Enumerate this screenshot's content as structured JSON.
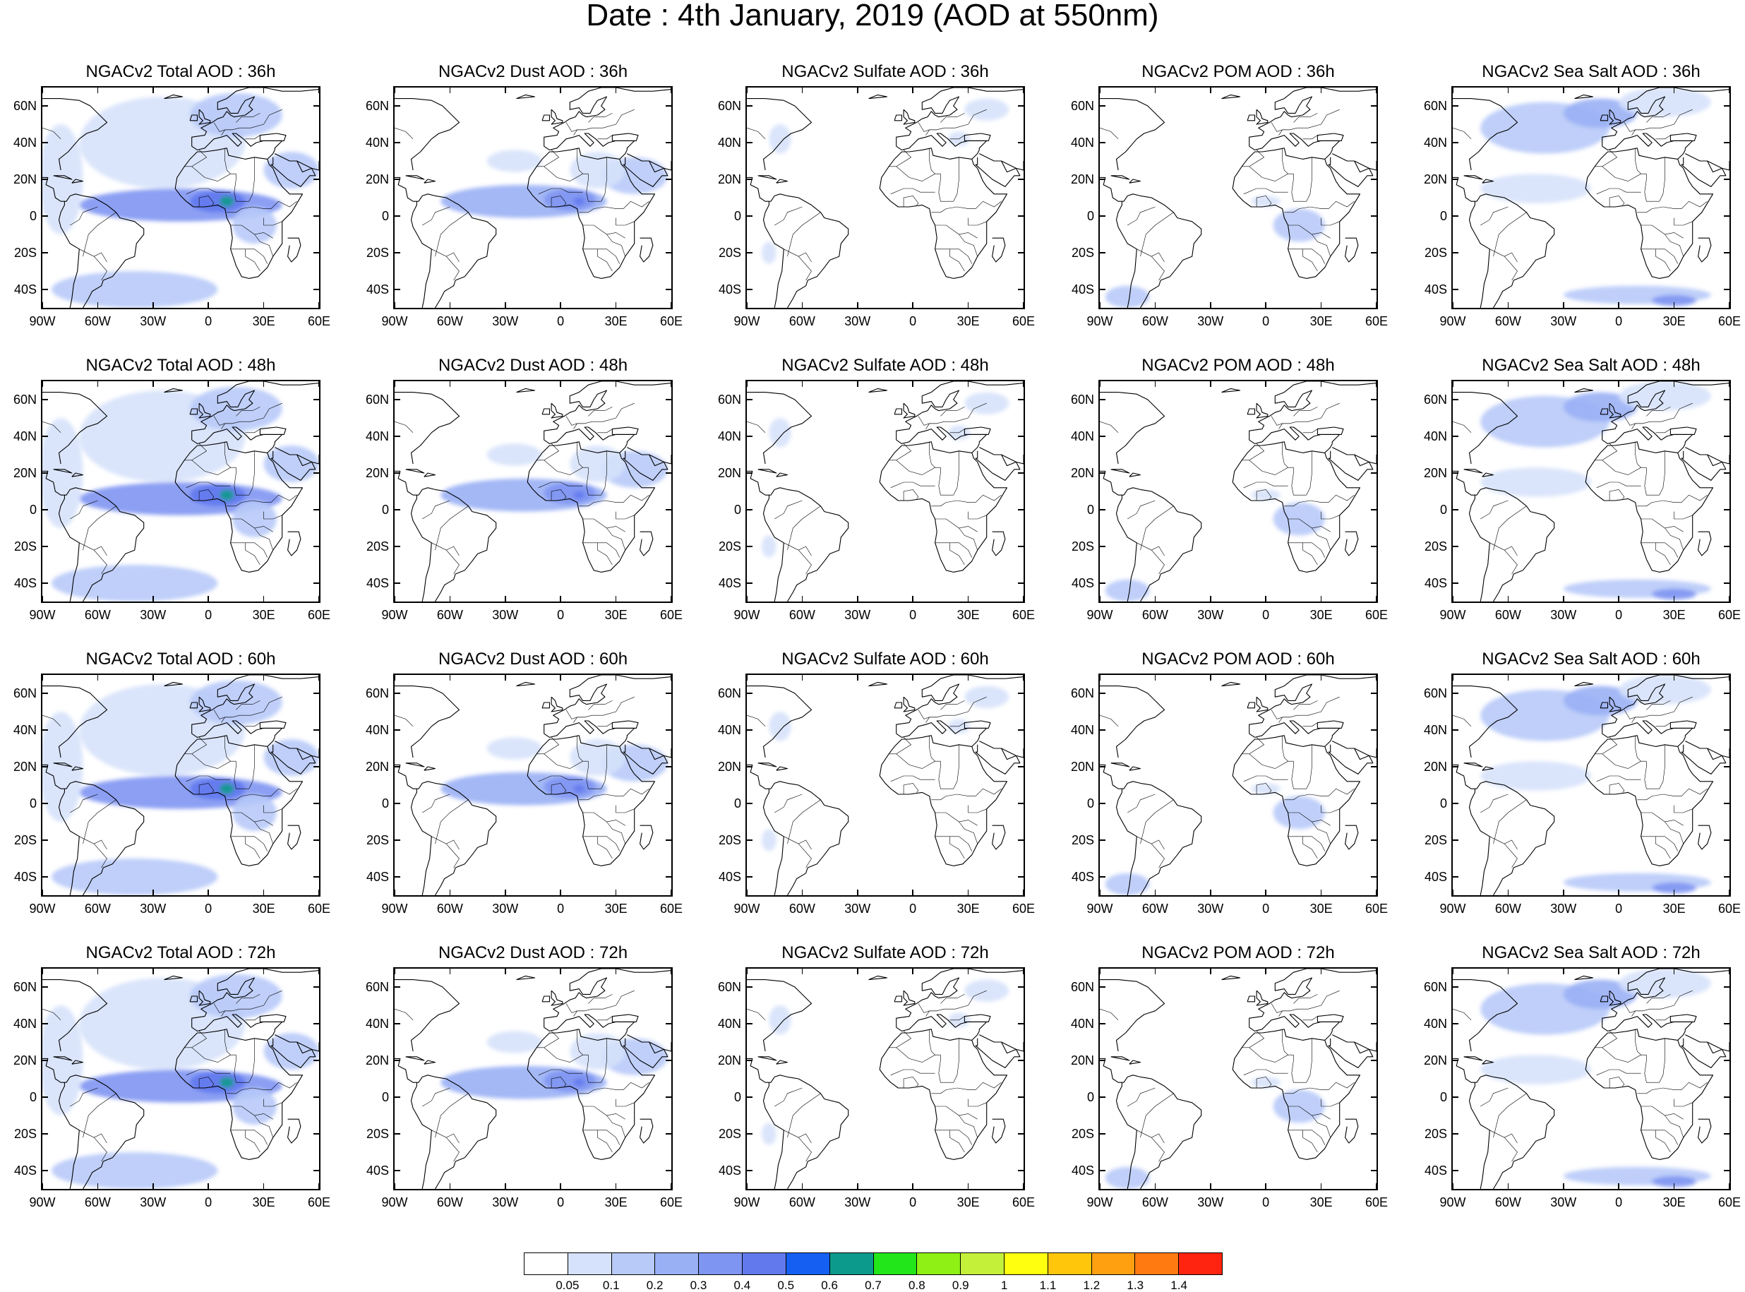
{
  "title": "Date : 4th January, 2019 (AOD at 550nm)",
  "map_extent": {
    "lon": [
      -90,
      60
    ],
    "lat": [
      -50,
      70
    ]
  },
  "lat_ticks": [
    {
      "v": 60,
      "label": "60N"
    },
    {
      "v": 40,
      "label": "40N"
    },
    {
      "v": 20,
      "label": "20N"
    },
    {
      "v": 0,
      "label": "0"
    },
    {
      "v": -20,
      "label": "20S"
    },
    {
      "v": -40,
      "label": "40S"
    }
  ],
  "lon_ticks": [
    {
      "v": -90,
      "label": "90W"
    },
    {
      "v": -60,
      "label": "60W"
    },
    {
      "v": -30,
      "label": "30W"
    },
    {
      "v": 0,
      "label": "0"
    },
    {
      "v": 30,
      "label": "30E"
    },
    {
      "v": 60,
      "label": "60E"
    }
  ],
  "panels": [
    {
      "title": "NGACv2 Total AOD : 36h",
      "species": "total",
      "hour": 36
    },
    {
      "title": "NGACv2 Dust AOD : 36h",
      "species": "dust",
      "hour": 36
    },
    {
      "title": "NGACv2 Sulfate AOD : 36h",
      "species": "sulfate",
      "hour": 36
    },
    {
      "title": "NGACv2 POM AOD : 36h",
      "species": "pom",
      "hour": 36
    },
    {
      "title": "NGACv2 Sea Salt AOD : 36h",
      "species": "seasalt",
      "hour": 36
    },
    {
      "title": "NGACv2 Total AOD : 48h",
      "species": "total",
      "hour": 48
    },
    {
      "title": "NGACv2 Dust AOD : 48h",
      "species": "dust",
      "hour": 48
    },
    {
      "title": "NGACv2 Sulfate AOD : 48h",
      "species": "sulfate",
      "hour": 48
    },
    {
      "title": "NGACv2 POM AOD : 48h",
      "species": "pom",
      "hour": 48
    },
    {
      "title": "NGACv2 Sea Salt AOD : 48h",
      "species": "seasalt",
      "hour": 48
    },
    {
      "title": "NGACv2 Total AOD : 60h",
      "species": "total",
      "hour": 60
    },
    {
      "title": "NGACv2 Dust AOD : 60h",
      "species": "dust",
      "hour": 60
    },
    {
      "title": "NGACv2 Sulfate AOD : 60h",
      "species": "sulfate",
      "hour": 60
    },
    {
      "title": "NGACv2 POM AOD : 60h",
      "species": "pom",
      "hour": 60
    },
    {
      "title": "NGACv2 Sea Salt AOD : 60h",
      "species": "seasalt",
      "hour": 60
    },
    {
      "title": "NGACv2 Total AOD : 72h",
      "species": "total",
      "hour": 72
    },
    {
      "title": "NGACv2 Dust AOD : 72h",
      "species": "dust",
      "hour": 72
    },
    {
      "title": "NGACv2 Sulfate AOD : 72h",
      "species": "sulfate",
      "hour": 72
    },
    {
      "title": "NGACv2 POM AOD : 72h",
      "species": "pom",
      "hour": 72
    },
    {
      "title": "NGACv2 Sea Salt  AOD : 72h",
      "species": "seasalt",
      "hour": 72
    }
  ],
  "colorbar": {
    "levels": [
      "0.05",
      "0.1",
      "0.2",
      "0.3",
      "0.4",
      "0.5",
      "0.6",
      "0.7",
      "0.8",
      "0.9",
      "1",
      "1.1",
      "1.2",
      "1.3",
      "1.4"
    ],
    "colors": [
      "#ffffff",
      "#d6e2fb",
      "#b8caf8",
      "#9ab0f5",
      "#7f95f2",
      "#6279ee",
      "#1560f2",
      "#0c9a8c",
      "#22e61a",
      "#8ef014",
      "#c4f03a",
      "#ffff10",
      "#ffc60c",
      "#ffa010",
      "#ff7a10",
      "#ff2410"
    ]
  },
  "plumes": {
    "total": [
      {
        "lon": -15,
        "lat": 6,
        "rlon": 55,
        "rlat": 9,
        "level": 4
      },
      {
        "lon": 5,
        "lat": 8,
        "rlon": 15,
        "rlat": 6,
        "level": 5
      },
      {
        "lon": 10,
        "lat": 8,
        "rlon": 4,
        "rlat": 3,
        "level": 7
      },
      {
        "lon": -25,
        "lat": 40,
        "rlon": 45,
        "rlat": 25,
        "level": 1
      },
      {
        "lon": -40,
        "lat": -40,
        "rlon": 45,
        "rlat": 10,
        "level": 2
      },
      {
        "lon": 15,
        "lat": 55,
        "rlon": 25,
        "rlat": 12,
        "level": 2
      },
      {
        "lon": 45,
        "lat": 25,
        "rlon": 15,
        "rlat": 10,
        "level": 2
      },
      {
        "lon": 25,
        "lat": -5,
        "rlon": 12,
        "rlat": 10,
        "level": 2
      },
      {
        "lon": -80,
        "lat": 20,
        "rlon": 12,
        "rlat": 30,
        "level": 1
      }
    ],
    "dust": [
      {
        "lon": -20,
        "lat": 8,
        "rlon": 45,
        "rlat": 9,
        "level": 3
      },
      {
        "lon": 5,
        "lat": 9,
        "rlon": 14,
        "rlat": 6,
        "level": 4
      },
      {
        "lon": 10,
        "lat": 8,
        "rlon": 3,
        "rlat": 2,
        "level": 5
      },
      {
        "lon": 40,
        "lat": 22,
        "rlon": 18,
        "rlat": 10,
        "level": 2
      },
      {
        "lon": 20,
        "lat": 25,
        "rlon": 15,
        "rlat": 10,
        "level": 1
      },
      {
        "lon": -25,
        "lat": 30,
        "rlon": 15,
        "rlat": 6,
        "level": 1
      }
    ],
    "sulfate": [
      {
        "lon": -72,
        "lat": 42,
        "rlon": 6,
        "rlat": 8,
        "level": 1
      },
      {
        "lon": 40,
        "lat": 58,
        "rlon": 12,
        "rlat": 6,
        "level": 1
      },
      {
        "lon": 25,
        "lat": 42,
        "rlon": 6,
        "rlat": 4,
        "level": 1
      },
      {
        "lon": -78,
        "lat": -20,
        "rlon": 4,
        "rlat": 6,
        "level": 1
      }
    ],
    "pom": [
      {
        "lon": 18,
        "lat": -5,
        "rlon": 14,
        "rlat": 9,
        "level": 2
      },
      {
        "lon": 0,
        "lat": 8,
        "rlon": 8,
        "rlat": 3,
        "level": 1
      },
      {
        "lon": -75,
        "lat": -44,
        "rlon": 12,
        "rlat": 6,
        "level": 2
      }
    ],
    "seasalt": [
      {
        "lon": -40,
        "lat": 48,
        "rlon": 35,
        "rlat": 14,
        "level": 2
      },
      {
        "lon": -10,
        "lat": 56,
        "rlon": 20,
        "rlat": 8,
        "level": 3
      },
      {
        "lon": 10,
        "lat": -43,
        "rlon": 40,
        "rlat": 5,
        "level": 2
      },
      {
        "lon": 30,
        "lat": -46,
        "rlon": 12,
        "rlat": 3,
        "level": 4
      },
      {
        "lon": -45,
        "lat": 15,
        "rlon": 30,
        "rlat": 8,
        "level": 1
      },
      {
        "lon": 25,
        "lat": 62,
        "rlon": 25,
        "rlat": 8,
        "level": 1
      }
    ]
  }
}
